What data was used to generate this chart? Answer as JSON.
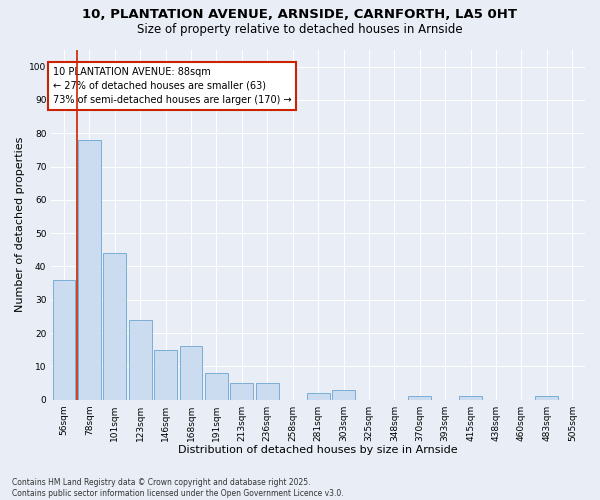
{
  "title1": "10, PLANTATION AVENUE, ARNSIDE, CARNFORTH, LA5 0HT",
  "title2": "Size of property relative to detached houses in Arnside",
  "xlabel": "Distribution of detached houses by size in Arnside",
  "ylabel": "Number of detached properties",
  "categories": [
    "56sqm",
    "78sqm",
    "101sqm",
    "123sqm",
    "146sqm",
    "168sqm",
    "191sqm",
    "213sqm",
    "236sqm",
    "258sqm",
    "281sqm",
    "303sqm",
    "325sqm",
    "348sqm",
    "370sqm",
    "393sqm",
    "415sqm",
    "438sqm",
    "460sqm",
    "483sqm",
    "505sqm"
  ],
  "values": [
    36,
    78,
    44,
    24,
    15,
    16,
    8,
    5,
    5,
    0,
    2,
    3,
    0,
    0,
    1,
    0,
    1,
    0,
    0,
    1,
    0
  ],
  "bar_color": "#ccdcf0",
  "bar_edge_color": "#7aaed6",
  "bg_color": "#e8edf6",
  "annotation_box_text": "10 PLANTATION AVENUE: 88sqm\n← 27% of detached houses are smaller (63)\n73% of semi-detached houses are larger (170) →",
  "annotation_box_color": "#cc2200",
  "annotation_box_fill": "white",
  "vline_x": 0.5,
  "vline_color": "#cc2200",
  "ylim": [
    0,
    105
  ],
  "yticks": [
    0,
    10,
    20,
    30,
    40,
    50,
    60,
    70,
    80,
    90,
    100
  ],
  "footnote": "Contains HM Land Registry data © Crown copyright and database right 2025.\nContains public sector information licensed under the Open Government Licence v3.0.",
  "title_fontsize": 9.5,
  "subtitle_fontsize": 8.5,
  "tick_fontsize": 6.5,
  "xlabel_fontsize": 8,
  "ylabel_fontsize": 8,
  "annot_fontsize": 7,
  "footnote_fontsize": 5.5
}
